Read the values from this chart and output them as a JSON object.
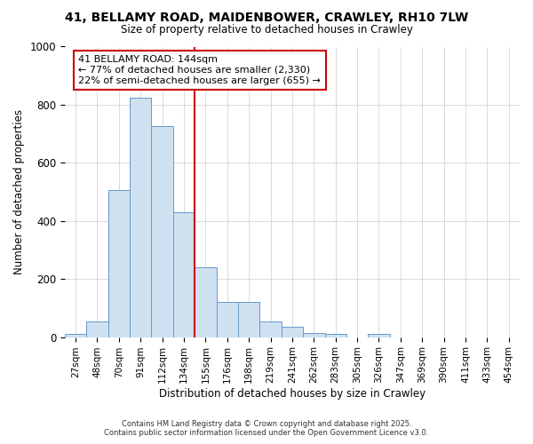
{
  "title_line1": "41, BELLAMY ROAD, MAIDENBOWER, CRAWLEY, RH10 7LW",
  "title_line2": "Size of property relative to detached houses in Crawley",
  "xlabel": "Distribution of detached houses by size in Crawley",
  "ylabel": "Number of detached properties",
  "categories": [
    "27sqm",
    "48sqm",
    "70sqm",
    "91sqm",
    "112sqm",
    "134sqm",
    "155sqm",
    "176sqm",
    "198sqm",
    "219sqm",
    "241sqm",
    "262sqm",
    "283sqm",
    "305sqm",
    "326sqm",
    "347sqm",
    "369sqm",
    "390sqm",
    "411sqm",
    "433sqm",
    "454sqm"
  ],
  "values": [
    10,
    55,
    505,
    825,
    725,
    430,
    240,
    120,
    120,
    55,
    35,
    15,
    12,
    0,
    12,
    0,
    0,
    0,
    0,
    0,
    0
  ],
  "bar_color": "#cfe0f0",
  "bar_edge_color": "#6699cc",
  "annotation_text_line1": "41 BELLAMY ROAD: 144sqm",
  "annotation_text_line2": "← 77% of detached houses are smaller (2,330)",
  "annotation_text_line3": "22% of semi-detached houses are larger (655) →",
  "annotation_box_facecolor": "#ffffff",
  "annotation_box_edgecolor": "#cc0000",
  "red_line_color": "#cc0000",
  "grid_color": "#cccccc",
  "footer_line1": "Contains HM Land Registry data © Crown copyright and database right 2025.",
  "footer_line2": "Contains public sector information licensed under the Open Government Licence v3.0.",
  "ylim": [
    0,
    1000
  ],
  "background_color": "#ffffff"
}
